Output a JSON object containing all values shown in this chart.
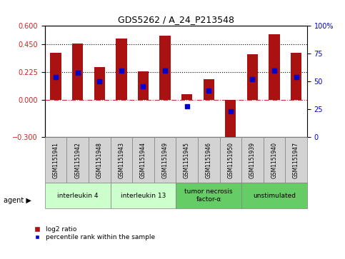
{
  "title": "GDS5262 / A_24_P213548",
  "samples": [
    "GSM1151941",
    "GSM1151942",
    "GSM1151948",
    "GSM1151943",
    "GSM1151944",
    "GSM1151949",
    "GSM1151945",
    "GSM1151946",
    "GSM1151950",
    "GSM1151939",
    "GSM1151940",
    "GSM1151947"
  ],
  "log2_ratio": [
    0.38,
    0.46,
    0.27,
    0.5,
    0.23,
    0.52,
    0.05,
    0.17,
    -0.32,
    0.37,
    0.53,
    0.38
  ],
  "percentile_rank": [
    54,
    58,
    50,
    60,
    46,
    60,
    28,
    42,
    23,
    52,
    60,
    54
  ],
  "groups": [
    {
      "label": "interleukin 4",
      "indices": [
        0,
        1,
        2
      ],
      "color": "#ccffcc"
    },
    {
      "label": "interleukin 13",
      "indices": [
        3,
        4,
        5
      ],
      "color": "#ccffcc"
    },
    {
      "label": "tumor necrosis\nfactor-α",
      "indices": [
        6,
        7,
        8
      ],
      "color": "#66cc66"
    },
    {
      "label": "unstimulated",
      "indices": [
        9,
        10,
        11
      ],
      "color": "#66cc66"
    }
  ],
  "ylim_left": [
    -0.3,
    0.6
  ],
  "ylim_right": [
    0,
    100
  ],
  "yticks_left": [
    -0.3,
    0,
    0.225,
    0.45,
    0.6
  ],
  "yticks_right": [
    0,
    25,
    50,
    75,
    100
  ],
  "hlines": [
    0.225,
    0.45
  ],
  "bar_color": "#aa1111",
  "dot_color": "#0000cc",
  "bar_width": 0.5,
  "background_color": "#ffffff",
  "plot_bg": "#ffffff"
}
